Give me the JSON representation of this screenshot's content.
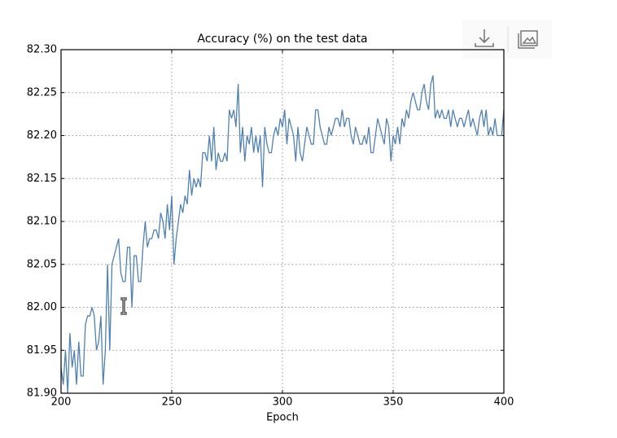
{
  "chart_data": {
    "type": "line",
    "title": "Accuracy (%) on the test data",
    "xlabel": "Epoch",
    "x": [
      200,
      201,
      202,
      203,
      204,
      205,
      206,
      207,
      208,
      209,
      210,
      211,
      212,
      213,
      214,
      215,
      216,
      217,
      218,
      219,
      220,
      221,
      222,
      223,
      224,
      225,
      226,
      227,
      228,
      229,
      230,
      231,
      232,
      233,
      234,
      235,
      236,
      237,
      238,
      239,
      240,
      241,
      242,
      243,
      244,
      245,
      246,
      247,
      248,
      249,
      250,
      251,
      252,
      253,
      254,
      255,
      256,
      257,
      258,
      259,
      260,
      261,
      262,
      263,
      264,
      265,
      266,
      267,
      268,
      269,
      270,
      271,
      272,
      273,
      274,
      275,
      276,
      277,
      278,
      279,
      280,
      281,
      282,
      283,
      284,
      285,
      286,
      287,
      288,
      289,
      290,
      291,
      292,
      293,
      294,
      295,
      296,
      297,
      298,
      299,
      300,
      301,
      302,
      303,
      304,
      305,
      306,
      307,
      308,
      309,
      310,
      311,
      312,
      313,
      314,
      315,
      316,
      317,
      318,
      319,
      320,
      321,
      322,
      323,
      324,
      325,
      326,
      327,
      328,
      329,
      330,
      331,
      332,
      333,
      334,
      335,
      336,
      337,
      338,
      339,
      340,
      341,
      342,
      343,
      344,
      345,
      346,
      347,
      348,
      349,
      350,
      351,
      352,
      353,
      354,
      355,
      356,
      357,
      358,
      359,
      360,
      361,
      362,
      363,
      364,
      365,
      366,
      367,
      368,
      369,
      370,
      371,
      372,
      373,
      374,
      375,
      376,
      377,
      378,
      379,
      380,
      381,
      382,
      383,
      384,
      385,
      386,
      387,
      388,
      389,
      390,
      391,
      392,
      393,
      394,
      395,
      396,
      397,
      398,
      399,
      400
    ],
    "values": [
      81.93,
      81.91,
      81.95,
      81.9,
      81.97,
      81.93,
      81.95,
      81.91,
      81.96,
      81.92,
      81.92,
      81.98,
      81.99,
      81.99,
      82.0,
      81.99,
      81.95,
      81.96,
      81.99,
      81.91,
      81.95,
      82.05,
      81.95,
      82.05,
      82.06,
      82.07,
      82.08,
      82.04,
      82.03,
      82.03,
      82.07,
      82.07,
      82.0,
      82.06,
      82.06,
      82.03,
      82.03,
      82.07,
      82.1,
      82.07,
      82.08,
      82.08,
      82.09,
      82.09,
      82.08,
      82.11,
      82.1,
      82.08,
      82.12,
      82.09,
      82.13,
      82.05,
      82.08,
      82.1,
      82.12,
      82.11,
      82.13,
      82.12,
      82.16,
      82.13,
      82.15,
      82.14,
      82.15,
      82.14,
      82.18,
      82.18,
      82.17,
      82.2,
      82.17,
      82.21,
      82.16,
      82.18,
      82.17,
      82.17,
      82.18,
      82.17,
      82.23,
      82.22,
      82.23,
      82.21,
      82.26,
      82.18,
      82.21,
      82.17,
      82.2,
      82.19,
      82.21,
      82.18,
      82.2,
      82.18,
      82.2,
      82.14,
      82.21,
      82.19,
      82.18,
      82.18,
      82.2,
      82.21,
      82.2,
      82.22,
      82.21,
      82.23,
      82.19,
      82.22,
      82.21,
      82.2,
      82.17,
      82.21,
      82.18,
      82.17,
      82.19,
      82.21,
      82.2,
      82.19,
      82.19,
      82.23,
      82.23,
      82.21,
      82.2,
      82.19,
      82.19,
      82.21,
      82.2,
      82.21,
      82.22,
      82.22,
      82.21,
      82.23,
      82.21,
      82.22,
      82.22,
      82.2,
      82.19,
      82.21,
      82.2,
      82.19,
      82.19,
      82.2,
      82.19,
      82.21,
      82.18,
      82.18,
      82.2,
      82.22,
      82.21,
      82.2,
      82.19,
      82.22,
      82.21,
      82.17,
      82.2,
      82.19,
      82.21,
      82.19,
      82.22,
      82.21,
      82.23,
      82.22,
      82.24,
      82.25,
      82.24,
      82.23,
      82.23,
      82.25,
      82.26,
      82.24,
      82.23,
      82.26,
      82.27,
      82.22,
      82.23,
      82.22,
      82.23,
      82.22,
      82.22,
      82.23,
      82.21,
      82.23,
      82.22,
      82.21,
      82.22,
      82.22,
      82.21,
      82.22,
      82.23,
      82.21,
      82.22,
      82.21,
      82.2,
      82.22,
      82.23,
      82.21,
      82.23,
      82.2,
      82.21,
      82.2,
      82.22,
      82.2,
      82.2,
      82.2,
      82.23
    ],
    "color": "#4f81b3",
    "xlim": [
      200,
      400
    ],
    "xticks": [
      200,
      250,
      300,
      350,
      400
    ],
    "ylim": [
      81.9,
      82.3
    ],
    "yticks": [
      {
        "value": 81.9,
        "label": "81.90"
      },
      81.95,
      {
        "value": 82.0,
        "label": "82.00"
      },
      82.05,
      {
        "value": 82.1,
        "label": "82.10"
      },
      82.15,
      {
        "value": 82.2,
        "label": "82.20"
      },
      82.25,
      {
        "value": 82.3,
        "label": "82.30"
      }
    ],
    "grid": true
  }
}
